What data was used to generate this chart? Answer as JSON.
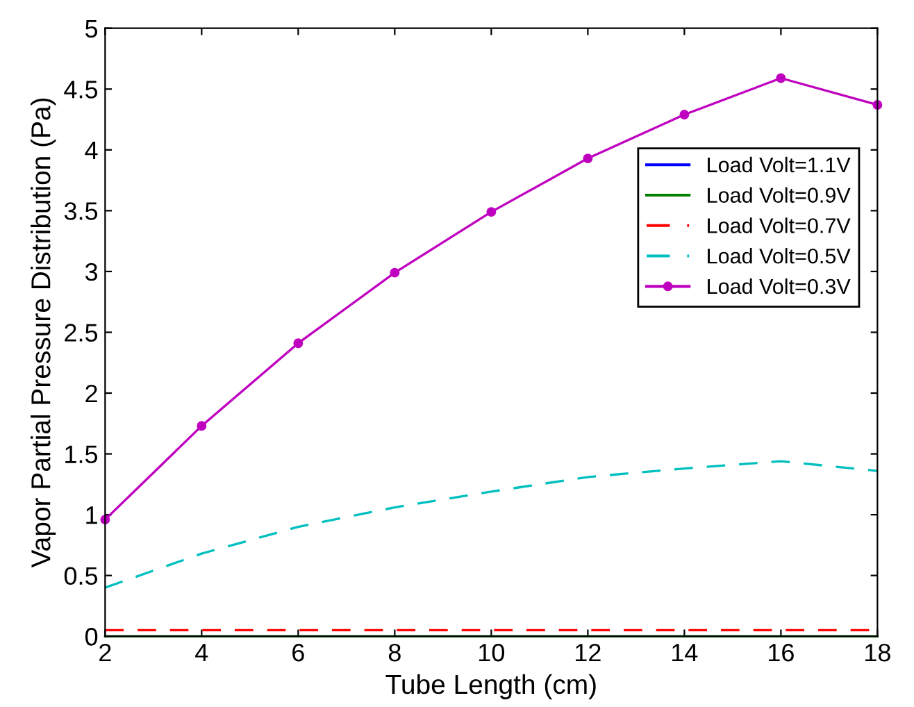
{
  "chart_data": {
    "type": "line",
    "xlabel": "Tube Length (cm)",
    "ylabel": "Vapor Partial Pressure Distribution (Pa)",
    "x": [
      2,
      4,
      6,
      8,
      10,
      12,
      14,
      16,
      18
    ],
    "series": [
      {
        "name": "Load Volt=1.1V",
        "color": "#0000ff",
        "line_style": "solid",
        "marker": "none",
        "values": [
          null,
          null,
          null,
          null,
          null,
          null,
          null,
          null,
          null
        ]
      },
      {
        "name": "Load Volt=0.9V",
        "color": "#008000",
        "line_style": "solid",
        "marker": "none",
        "values": [
          0,
          0,
          0,
          0,
          0,
          0,
          0,
          0,
          0
        ]
      },
      {
        "name": "Load Volt=0.7V",
        "color": "#ff0000",
        "line_style": "dashed",
        "marker": "none",
        "values": [
          0.05,
          0.05,
          0.05,
          0.05,
          0.05,
          0.05,
          0.05,
          0.05,
          0.05
        ]
      },
      {
        "name": "Load Volt=0.5V",
        "color": "#00bfbf",
        "line_style": "dashed",
        "marker": "none",
        "values": [
          0.4,
          0.68,
          0.9,
          1.06,
          1.19,
          1.31,
          1.38,
          1.44,
          1.36
        ]
      },
      {
        "name": "Load Volt=0.3V",
        "color": "#bf00bf",
        "line_style": "solid",
        "marker": "circle",
        "values": [
          0.96,
          1.73,
          2.41,
          2.99,
          3.49,
          3.93,
          4.29,
          4.59,
          4.37
        ]
      }
    ],
    "xlim": [
      2,
      18
    ],
    "ylim": [
      0,
      5
    ],
    "xticks": [
      2,
      4,
      6,
      8,
      10,
      12,
      14,
      16,
      18
    ],
    "yticks": [
      0,
      0.5,
      1,
      1.5,
      2,
      2.5,
      3,
      3.5,
      4,
      4.5,
      5
    ],
    "grid": false,
    "legend": "top right"
  }
}
